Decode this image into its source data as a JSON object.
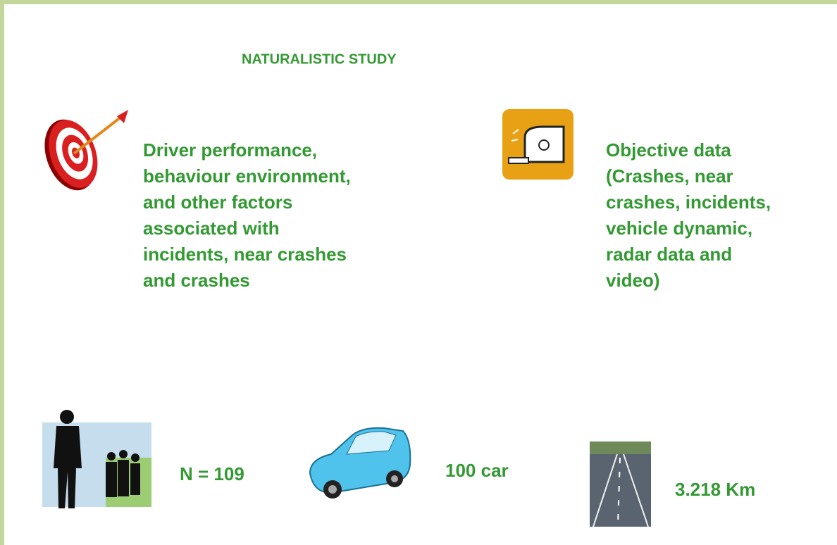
{
  "title": "NATURALISTIC STUDY",
  "left_block": {
    "lines": [
      "Driver performance,",
      "behaviour environment,",
      "and other factors",
      "associated with",
      "incidents, near crashes",
      "and crashes"
    ]
  },
  "right_block": {
    "lines": [
      "Objective data",
      "(Crashes, near",
      "crashes, incidents,",
      "vehicle dynamic,",
      "radar data and",
      "video)"
    ]
  },
  "stats": {
    "participants": "N = 109",
    "cars": "100 car",
    "distance": "3.218 Km"
  }
}
